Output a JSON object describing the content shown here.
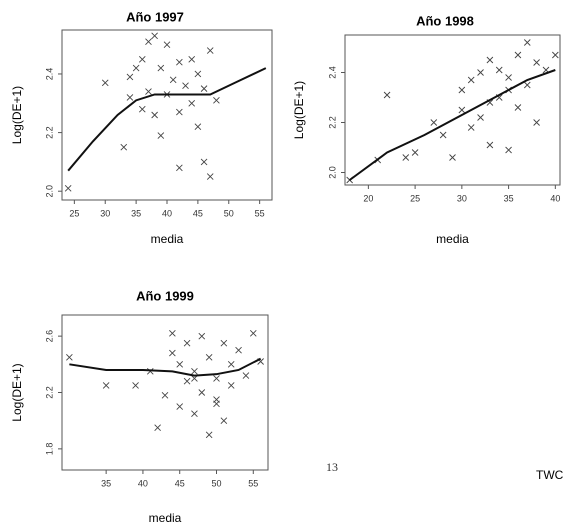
{
  "chart_data": [
    {
      "type": "scatter",
      "title": "Año 1997",
      "xlabel": "media",
      "ylabel": "Log(DE+1)",
      "color": "#444444",
      "x": [
        24,
        30,
        33,
        34,
        35,
        36,
        37,
        37,
        38,
        38,
        39,
        39,
        40,
        40,
        41,
        42,
        42,
        43,
        44,
        44,
        45,
        45,
        46,
        47,
        47,
        48,
        34,
        36,
        42,
        46
      ],
      "y": [
        2.01,
        2.37,
        2.15,
        2.39,
        2.42,
        2.28,
        2.34,
        2.51,
        2.53,
        2.26,
        2.42,
        2.19,
        2.5,
        2.33,
        2.38,
        2.44,
        2.08,
        2.36,
        2.3,
        2.45,
        2.22,
        2.4,
        2.1,
        2.48,
        2.05,
        2.31,
        2.32,
        2.45,
        2.27,
        2.35
      ],
      "smooth": {
        "x": [
          24,
          28,
          32,
          35,
          38,
          42,
          47,
          51,
          56
        ],
        "y": [
          2.07,
          2.17,
          2.26,
          2.31,
          2.33,
          2.33,
          2.33,
          2.37,
          2.42
        ]
      },
      "xlim": [
        23,
        57
      ],
      "xticks": [
        25,
        30,
        35,
        40,
        45,
        50,
        55
      ],
      "ylim": [
        1.97,
        2.55
      ],
      "yticks": [
        {
          "value": 2.0,
          "label": "2.0"
        },
        2.2,
        2.4
      ]
    },
    {
      "type": "scatter",
      "title": "Año 1998",
      "xlabel": "media",
      "ylabel": "Log(DE+1)",
      "color": "#444444",
      "x": [
        18,
        21,
        22,
        24,
        25,
        27,
        28,
        29,
        30,
        30,
        31,
        31,
        32,
        32,
        33,
        33,
        34,
        34,
        35,
        35,
        36,
        36,
        37,
        37,
        38,
        38,
        39,
        40,
        33,
        35
      ],
      "y": [
        1.97,
        2.05,
        2.31,
        2.06,
        2.08,
        2.2,
        2.15,
        2.06,
        2.25,
        2.33,
        2.18,
        2.37,
        2.4,
        2.22,
        2.45,
        2.11,
        2.3,
        2.41,
        2.09,
        2.38,
        2.47,
        2.26,
        2.52,
        2.35,
        2.44,
        2.2,
        2.41,
        2.47,
        2.28,
        2.33
      ],
      "smooth": {
        "x": [
          18,
          22,
          26,
          30,
          34,
          37,
          40
        ],
        "y": [
          1.97,
          2.08,
          2.15,
          2.23,
          2.31,
          2.37,
          2.41
        ]
      },
      "xlim": [
        17.5,
        40.5
      ],
      "xticks": [
        20,
        25,
        30,
        35,
        40
      ],
      "ylim": [
        1.95,
        2.55
      ],
      "yticks": [
        {
          "value": 2.0,
          "label": "2.0"
        },
        2.2,
        2.4
      ]
    },
    {
      "type": "scatter",
      "title": "Año 1999",
      "xlabel": "media",
      "ylabel": "Log(DE+1)",
      "color": "#444444",
      "x": [
        30,
        35,
        39,
        41,
        42,
        43,
        44,
        44,
        45,
        45,
        46,
        46,
        47,
        47,
        48,
        48,
        49,
        49,
        50,
        50,
        51,
        51,
        52,
        52,
        53,
        54,
        55,
        56,
        47,
        50
      ],
      "y": [
        2.45,
        2.25,
        2.25,
        2.35,
        1.95,
        2.18,
        2.62,
        2.48,
        2.4,
        2.1,
        2.55,
        2.28,
        2.35,
        2.05,
        2.2,
        2.6,
        2.45,
        1.9,
        2.3,
        2.15,
        2.55,
        2.0,
        2.4,
        2.25,
        2.5,
        2.32,
        2.62,
        2.42,
        2.3,
        2.12
      ],
      "smooth": {
        "x": [
          30,
          35,
          40,
          44,
          47,
          50,
          53,
          56
        ],
        "y": [
          2.4,
          2.36,
          2.36,
          2.35,
          2.32,
          2.33,
          2.36,
          2.44
        ]
      },
      "xlim": [
        29,
        57
      ],
      "xticks": [
        35,
        40,
        45,
        50,
        55
      ],
      "ylim": [
        1.65,
        2.75
      ],
      "yticks": [
        1.8,
        2.2,
        2.6
      ]
    }
  ],
  "page_number": "13",
  "footer": "TWC"
}
